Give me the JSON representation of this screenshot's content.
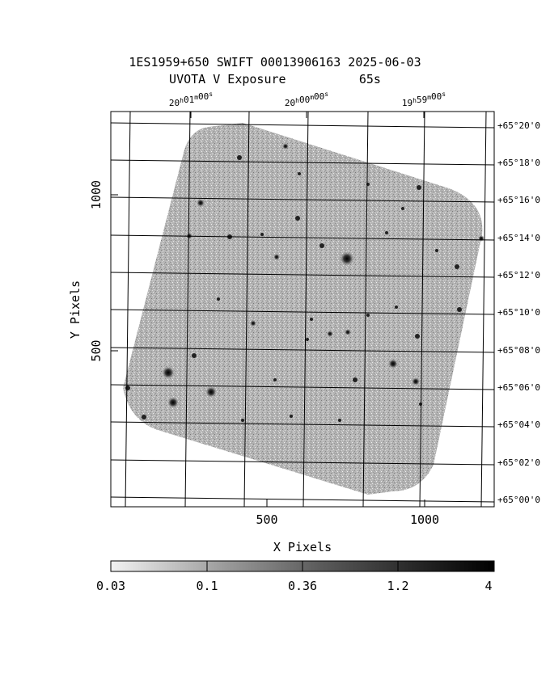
{
  "title": {
    "line1": "1ES1959+650 SWIFT 00013906163 2025-06-03",
    "line2": "UVOTA V Exposure          65s"
  },
  "axes": {
    "xlabel": "X Pixels",
    "ylabel": "Y Pixels",
    "x_ticks": [
      "500",
      "1000"
    ],
    "y_ticks": [
      "500",
      "1000"
    ],
    "ra_ticks": [
      {
        "h": "20",
        "m": "01",
        "s": "00"
      },
      {
        "h": "20",
        "m": "00",
        "s": "00"
      },
      {
        "h": "19",
        "m": "59",
        "s": "00"
      }
    ],
    "dec_ticks": [
      "+65°20'0",
      "+65°18'0",
      "+65°16'0",
      "+65°14'0",
      "+65°12'0",
      "+65°10'0",
      "+65°08'0",
      "+65°06'0",
      "+65°04'0",
      "+65°02'0",
      "+65°00'0"
    ]
  },
  "colorbar": {
    "labels": [
      "0.03",
      "0.1",
      "0.36",
      "1.2",
      "4"
    ],
    "scale": "log",
    "colormap": "grayscale"
  },
  "colors": {
    "background": "#ffffff",
    "exposure": "#a8a8a8",
    "grid": "#000000"
  }
}
